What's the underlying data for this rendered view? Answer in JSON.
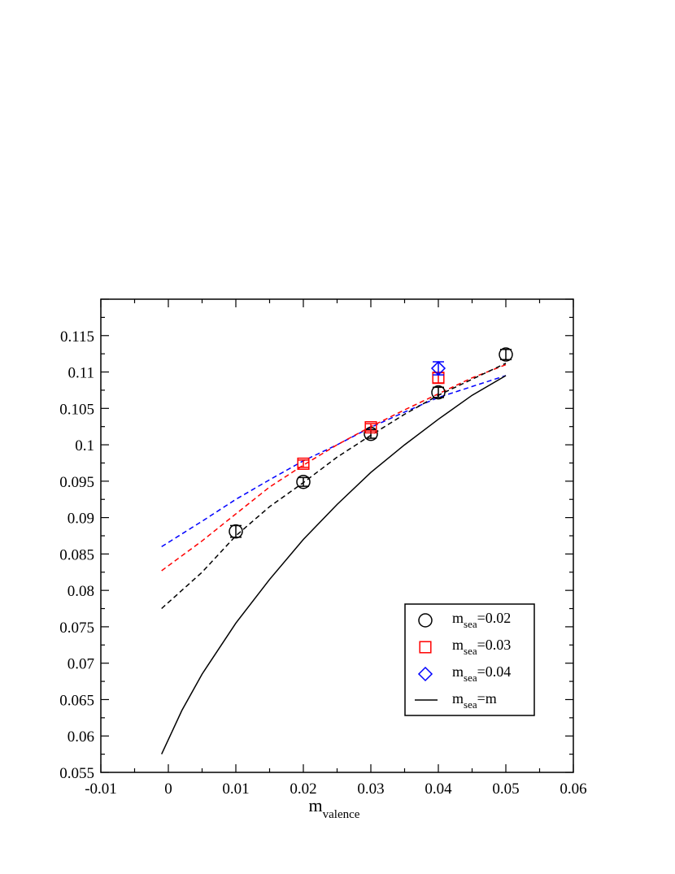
{
  "chart_data": {
    "type": "scatter",
    "title": "",
    "xlabel": {
      "main": "m",
      "sub": "valence"
    },
    "ylabel": "",
    "xlim": [
      -0.01,
      0.06
    ],
    "ylim": [
      0.055,
      0.12
    ],
    "x_ticks": [
      -0.01,
      0,
      0.01,
      0.02,
      0.03,
      0.04,
      0.05,
      0.06
    ],
    "x_tick_labels": [
      "-0.01",
      "0",
      "0.01",
      "0.02",
      "0.03",
      "0.04",
      "0.05",
      "0.06"
    ],
    "y_ticks": [
      0.055,
      0.06,
      0.065,
      0.07,
      0.075,
      0.08,
      0.085,
      0.09,
      0.095,
      0.1,
      0.105,
      0.11,
      0.115
    ],
    "y_tick_labels": [
      "0.055",
      "0.06",
      "0.065",
      "0.07",
      "0.075",
      "0.08",
      "0.085",
      "0.09",
      "0.095",
      "0.1",
      "0.105",
      "0.11",
      "0.115"
    ],
    "grid": false,
    "legend_position": "bottom-right",
    "series": [
      {
        "kind": "points",
        "marker": "circle",
        "color": "#000000",
        "legend": {
          "main": "m",
          "sub": "sea",
          "rest": "=0.02"
        },
        "points": [
          {
            "x": 0.01,
            "y": 0.0881,
            "err": 0.0008
          },
          {
            "x": 0.02,
            "y": 0.0949,
            "err": 0.0006
          },
          {
            "x": 0.03,
            "y": 0.1015,
            "err": 0.0006
          },
          {
            "x": 0.04,
            "y": 0.1072,
            "err": 0.0007
          },
          {
            "x": 0.05,
            "y": 0.1124,
            "err": 0.0007
          }
        ]
      },
      {
        "kind": "points",
        "marker": "square",
        "color": "#ff0000",
        "legend": {
          "main": "m",
          "sub": "sea",
          "rest": "=0.03"
        },
        "points": [
          {
            "x": 0.02,
            "y": 0.0974,
            "err": 0.0005
          },
          {
            "x": 0.03,
            "y": 0.1024,
            "err": 0.0005
          },
          {
            "x": 0.04,
            "y": 0.1092,
            "err": 0.0007
          }
        ]
      },
      {
        "kind": "points",
        "marker": "diamond",
        "color": "#0000ff",
        "legend": {
          "main": "m",
          "sub": "sea",
          "rest": "=0.04"
        },
        "points": [
          {
            "x": 0.04,
            "y": 0.1105,
            "err": 0.0009
          }
        ]
      },
      {
        "kind": "line",
        "style": "dashed",
        "color": "#0000ff",
        "points": [
          {
            "x": -0.001,
            "y": 0.086
          },
          {
            "x": 0.005,
            "y": 0.0895
          },
          {
            "x": 0.01,
            "y": 0.0925
          },
          {
            "x": 0.015,
            "y": 0.0952
          },
          {
            "x": 0.02,
            "y": 0.0978
          },
          {
            "x": 0.025,
            "y": 0.1
          },
          {
            "x": 0.03,
            "y": 0.1024
          },
          {
            "x": 0.035,
            "y": 0.1045
          },
          {
            "x": 0.04,
            "y": 0.1065
          },
          {
            "x": 0.045,
            "y": 0.108
          },
          {
            "x": 0.05,
            "y": 0.1095
          }
        ]
      },
      {
        "kind": "line",
        "style": "dashed",
        "color": "#ff0000",
        "points": [
          {
            "x": -0.001,
            "y": 0.0827
          },
          {
            "x": 0.005,
            "y": 0.0868
          },
          {
            "x": 0.01,
            "y": 0.0905
          },
          {
            "x": 0.015,
            "y": 0.0942
          },
          {
            "x": 0.02,
            "y": 0.0972
          },
          {
            "x": 0.025,
            "y": 0.1
          },
          {
            "x": 0.03,
            "y": 0.1025
          },
          {
            "x": 0.035,
            "y": 0.1048
          },
          {
            "x": 0.04,
            "y": 0.107
          },
          {
            "x": 0.045,
            "y": 0.1092
          },
          {
            "x": 0.05,
            "y": 0.111
          }
        ]
      },
      {
        "kind": "line",
        "style": "dashed",
        "color": "#000000",
        "points": [
          {
            "x": -0.001,
            "y": 0.0775
          },
          {
            "x": 0.005,
            "y": 0.0825
          },
          {
            "x": 0.01,
            "y": 0.0875
          },
          {
            "x": 0.015,
            "y": 0.0915
          },
          {
            "x": 0.02,
            "y": 0.0948
          },
          {
            "x": 0.025,
            "y": 0.0983
          },
          {
            "x": 0.03,
            "y": 0.1013
          },
          {
            "x": 0.035,
            "y": 0.1042
          },
          {
            "x": 0.04,
            "y": 0.1068
          },
          {
            "x": 0.045,
            "y": 0.109
          },
          {
            "x": 0.05,
            "y": 0.1112
          }
        ]
      },
      {
        "kind": "line",
        "style": "solid",
        "color": "#000000",
        "legend": {
          "main": "m",
          "sub": "sea",
          "rest": "=m"
        },
        "points": [
          {
            "x": -0.001,
            "y": 0.0575
          },
          {
            "x": 0.002,
            "y": 0.0635
          },
          {
            "x": 0.005,
            "y": 0.0685
          },
          {
            "x": 0.01,
            "y": 0.0755
          },
          {
            "x": 0.015,
            "y": 0.0815
          },
          {
            "x": 0.02,
            "y": 0.087
          },
          {
            "x": 0.025,
            "y": 0.0918
          },
          {
            "x": 0.03,
            "y": 0.0962
          },
          {
            "x": 0.035,
            "y": 0.1
          },
          {
            "x": 0.04,
            "y": 0.1035
          },
          {
            "x": 0.045,
            "y": 0.1068
          },
          {
            "x": 0.05,
            "y": 0.1095
          }
        ]
      }
    ]
  }
}
